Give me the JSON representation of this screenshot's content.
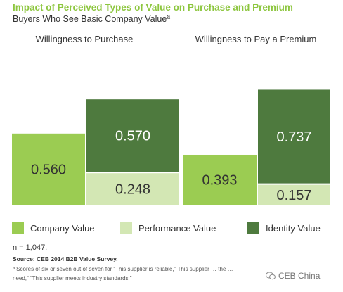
{
  "chart_data": {
    "type": "bar",
    "stacked": true,
    "title": "Impact of Perceived Types of Value on Purchase and Premium",
    "subtitle": "Buyers Who See Basic Company Valueª",
    "panels": [
      {
        "title": "Willingness to Purchase",
        "segments": [
          {
            "series": "Company Value",
            "value": 0.56,
            "label": "0.560"
          },
          {
            "series": "Performance Value",
            "value": 0.248,
            "label": "0.248"
          },
          {
            "series": "Identity Value",
            "value": 0.57,
            "label": "0.570"
          }
        ]
      },
      {
        "title": "Willingness to Pay a Premium",
        "segments": [
          {
            "series": "Company Value",
            "value": 0.393,
            "label": "0.393"
          },
          {
            "series": "Performance Value",
            "value": 0.157,
            "label": "0.157"
          },
          {
            "series": "Identity Value",
            "value": 0.737,
            "label": "0.737"
          }
        ]
      }
    ],
    "legend": [
      {
        "name": "Company Value",
        "color": "#9bcc52"
      },
      {
        "name": "Performance Value",
        "color": "#d3e7b4"
      },
      {
        "name": "Identity Value",
        "color": "#4e7a3e"
      }
    ],
    "legend_placement": "bottom",
    "grid": false
  },
  "colors": {
    "title": "#8dc63f",
    "company": "#9bcc52",
    "performance": "#d3e7b4",
    "identity": "#4e7a3e"
  },
  "footnotes": {
    "n": "n = 1,047.",
    "source": "Source: CEB 2014 B2B Value Survey.",
    "note_line1": "ª Scores of six or seven out of seven for “This supplier is reliable,” This supplier … the … need,”",
    "note_line2": "need,” “This supplier meets industry standards.”"
  },
  "watermark": {
    "icon": "wechat-icon",
    "text": "CEB China"
  }
}
